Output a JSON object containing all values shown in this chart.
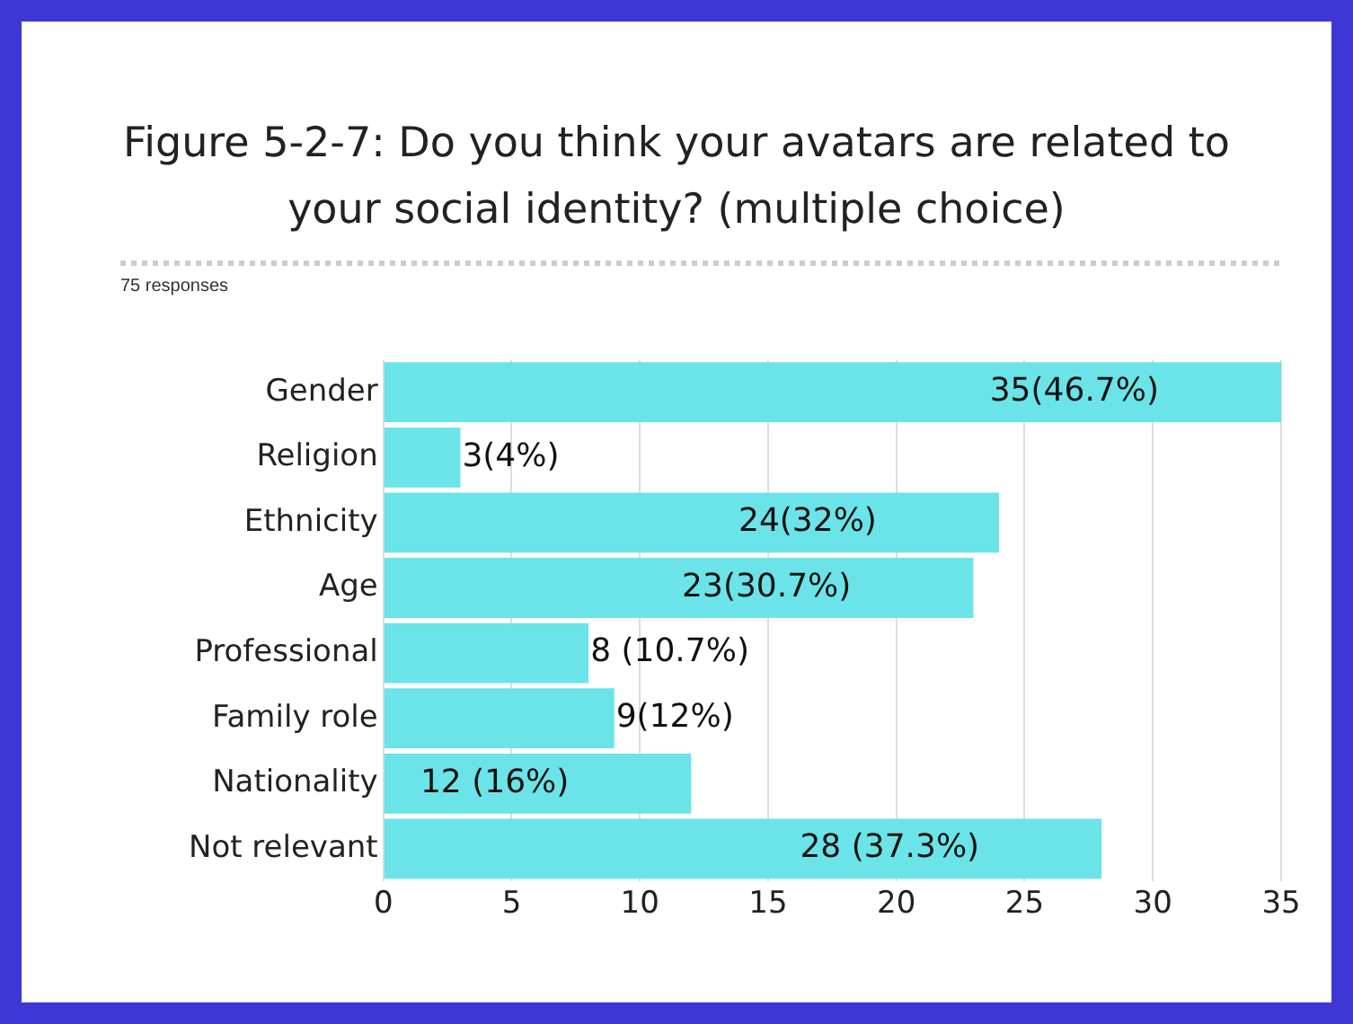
{
  "chart_data": {
    "type": "bar",
    "orientation": "horizontal",
    "title": "Figure 5-2-7: Do you think your avatars are related to your social identity? (multiple choice)",
    "subtitle": "75 responses",
    "categories": [
      "Gender",
      "Religion",
      "Ethnicity",
      "Age",
      "Professional",
      "Family role",
      "Nationality",
      "Not relevant"
    ],
    "values": [
      35,
      3,
      24,
      23,
      8,
      9,
      12,
      28
    ],
    "value_labels": [
      "35(46.7%)",
      "3(4%)",
      "24(32%)",
      "23(30.7%)",
      "8 (10.7%)",
      "9(12%)",
      "12 (16%)",
      "28 (37.3%)"
    ],
    "color": "#6ae4e8",
    "xlim": [
      0,
      35
    ],
    "xticks": [
      0,
      5,
      10,
      15,
      20,
      25,
      30,
      35
    ],
    "grid": "x",
    "legend": false
  }
}
